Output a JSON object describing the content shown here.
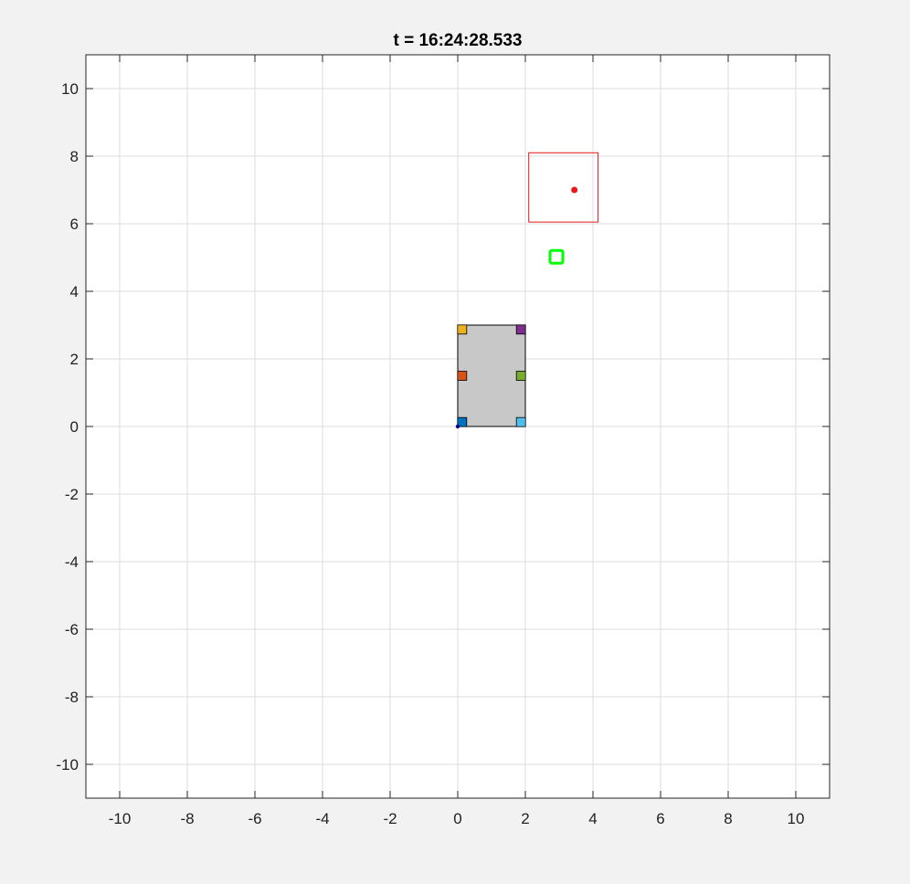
{
  "chart_data": {
    "type": "scatter",
    "title": "t = 16:24:28.533",
    "xlabel": "",
    "ylabel": "",
    "xlim": [
      -11,
      11
    ],
    "ylim": [
      -11,
      11
    ],
    "grid": true,
    "xticks": [
      -10,
      -8,
      -6,
      -4,
      -2,
      0,
      2,
      4,
      6,
      8,
      10
    ],
    "yticks": [
      -10,
      -8,
      -6,
      -4,
      -2,
      0,
      2,
      4,
      6,
      8,
      10
    ],
    "body_rectangle": {
      "x": [
        0,
        2
      ],
      "y": [
        0,
        3
      ],
      "fill": "#c8c8c8",
      "edge": "#000000"
    },
    "corner_markers": [
      {
        "x": 0.13,
        "y": 0.13,
        "color": "#0072BD"
      },
      {
        "x": 1.87,
        "y": 0.13,
        "color": "#4DBEEE"
      },
      {
        "x": 0.13,
        "y": 1.5,
        "color": "#D95319"
      },
      {
        "x": 1.87,
        "y": 1.5,
        "color": "#77AC30"
      },
      {
        "x": 0.13,
        "y": 2.87,
        "color": "#EDB120"
      },
      {
        "x": 1.87,
        "y": 2.87,
        "color": "#7E2F8E"
      }
    ],
    "origin_point": {
      "x": 0,
      "y": 0,
      "color": "#00008B"
    },
    "target_box": {
      "x": [
        2.1,
        4.15
      ],
      "y": [
        6.05,
        8.1
      ],
      "color": "#E41A1C"
    },
    "target_point": {
      "x": 3.45,
      "y": 7.0,
      "color": "#E41A1C"
    },
    "green_marker": {
      "x": 2.92,
      "y": 5.02,
      "color": "#00FF00"
    }
  },
  "colors": {
    "figure_bg": "#f2f2f2",
    "axes_bg": "#ffffff",
    "grid": "#dcdcdc",
    "axis_line": "#262626"
  }
}
